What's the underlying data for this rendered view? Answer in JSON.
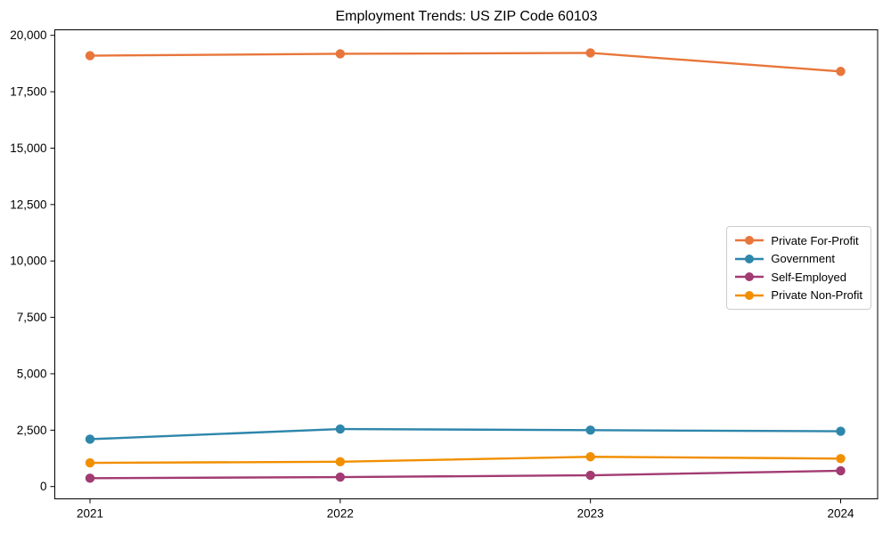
{
  "chart_data": {
    "type": "line",
    "title": "Employment Trends: US ZIP Code 60103",
    "xlabel": "",
    "ylabel": "",
    "categories": [
      "2021",
      "2022",
      "2023",
      "2024"
    ],
    "series": [
      {
        "name": "Private For-Profit",
        "color": "#E8763B",
        "values": [
          19100,
          19180,
          19220,
          18400
        ]
      },
      {
        "name": "Government",
        "color": "#2E86AB",
        "values": [
          2100,
          2550,
          2500,
          2450
        ]
      },
      {
        "name": "Self-Employed",
        "color": "#A23B72",
        "values": [
          370,
          420,
          500,
          700
        ]
      },
      {
        "name": "Private Non-Profit",
        "color": "#F18F01",
        "values": [
          1050,
          1100,
          1320,
          1240
        ]
      }
    ],
    "ylim": [
      0,
      20000
    ],
    "y_ticks": [
      0,
      2500,
      5000,
      7500,
      10000,
      12500,
      15000,
      17500,
      20000
    ],
    "y_tick_labels": [
      "0",
      "2,500",
      "5,000",
      "7,500",
      "10,000",
      "12,500",
      "15,000",
      "17,500",
      "20,000"
    ],
    "grid": false,
    "legend_position": "center right",
    "axis_color": "#000000",
    "text_color": "#000000"
  }
}
